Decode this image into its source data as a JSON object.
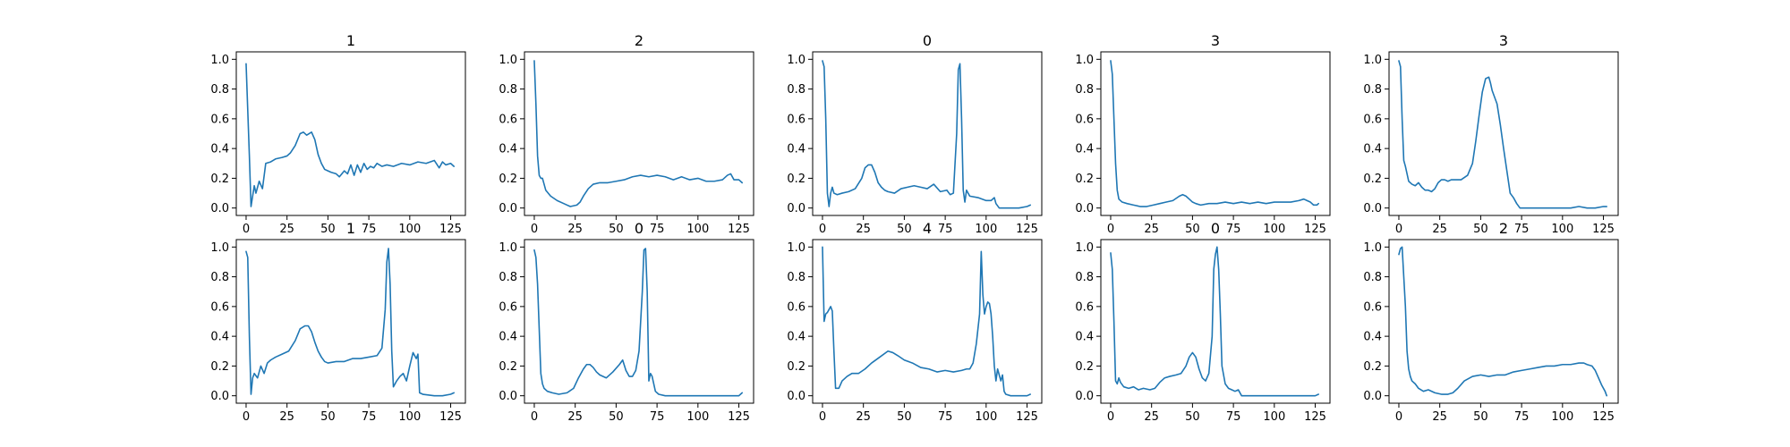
{
  "chart_data": [
    {
      "type": "line",
      "title": "1",
      "xlim": [
        -6,
        134
      ],
      "ylim": [
        -0.05,
        1.05
      ],
      "xticks": [
        0,
        25,
        50,
        75,
        100,
        125
      ],
      "yticks": [
        0.0,
        0.2,
        0.4,
        0.6,
        0.8,
        1.0
      ],
      "grid": false,
      "color": "#1f77b4",
      "x": [
        0,
        2,
        3,
        5,
        6,
        8,
        10,
        12,
        15,
        18,
        22,
        25,
        27,
        30,
        33,
        35,
        37,
        40,
        42,
        44,
        46,
        48,
        50,
        52,
        55,
        57,
        60,
        62,
        64,
        66,
        68,
        70,
        72,
        74,
        76,
        78,
        80,
        83,
        86,
        90,
        95,
        100,
        105,
        110,
        115,
        118,
        120,
        122,
        125,
        127
      ],
      "y": [
        0.97,
        0.35,
        0.01,
        0.15,
        0.1,
        0.18,
        0.13,
        0.3,
        0.31,
        0.33,
        0.34,
        0.35,
        0.37,
        0.42,
        0.5,
        0.51,
        0.49,
        0.51,
        0.46,
        0.36,
        0.3,
        0.26,
        0.25,
        0.24,
        0.23,
        0.21,
        0.25,
        0.23,
        0.29,
        0.22,
        0.29,
        0.24,
        0.3,
        0.26,
        0.28,
        0.27,
        0.3,
        0.28,
        0.29,
        0.28,
        0.3,
        0.29,
        0.31,
        0.3,
        0.32,
        0.27,
        0.31,
        0.29,
        0.3,
        0.28
      ]
    },
    {
      "type": "line",
      "title": "2",
      "xlim": [
        -6,
        134
      ],
      "ylim": [
        -0.05,
        1.05
      ],
      "xticks": [
        0,
        25,
        50,
        75,
        100,
        125
      ],
      "yticks": [
        0.0,
        0.2,
        0.4,
        0.6,
        0.8,
        1.0
      ],
      "grid": false,
      "color": "#1f77b4",
      "x": [
        0,
        1,
        2,
        3,
        4,
        5,
        7,
        10,
        14,
        18,
        22,
        26,
        28,
        30,
        33,
        36,
        40,
        45,
        50,
        55,
        60,
        65,
        70,
        75,
        80,
        85,
        90,
        95,
        100,
        105,
        110,
        115,
        118,
        120,
        122,
        125,
        127
      ],
      "y": [
        0.99,
        0.7,
        0.35,
        0.22,
        0.2,
        0.2,
        0.12,
        0.08,
        0.05,
        0.03,
        0.01,
        0.02,
        0.04,
        0.08,
        0.13,
        0.16,
        0.17,
        0.17,
        0.18,
        0.19,
        0.21,
        0.22,
        0.21,
        0.22,
        0.21,
        0.19,
        0.21,
        0.19,
        0.2,
        0.18,
        0.18,
        0.19,
        0.22,
        0.23,
        0.19,
        0.19,
        0.17
      ]
    },
    {
      "type": "line",
      "title": "0",
      "xlim": [
        -6,
        134
      ],
      "ylim": [
        -0.05,
        1.05
      ],
      "xticks": [
        0,
        25,
        50,
        75,
        100,
        125
      ],
      "yticks": [
        0.0,
        0.2,
        0.4,
        0.6,
        0.8,
        1.0
      ],
      "grid": false,
      "color": "#1f77b4",
      "x": [
        0,
        1,
        2,
        3,
        4,
        5,
        6,
        7,
        9,
        12,
        16,
        20,
        24,
        26,
        28,
        30,
        32,
        34,
        36,
        38,
        40,
        44,
        48,
        52,
        56,
        60,
        64,
        68,
        72,
        76,
        78,
        80,
        82,
        83,
        84,
        85,
        86,
        87,
        88,
        90,
        95,
        100,
        103,
        105,
        106,
        108,
        115,
        120,
        125,
        127
      ],
      "y": [
        0.99,
        0.95,
        0.6,
        0.1,
        0.01,
        0.1,
        0.14,
        0.1,
        0.09,
        0.1,
        0.11,
        0.13,
        0.2,
        0.27,
        0.29,
        0.29,
        0.24,
        0.17,
        0.14,
        0.12,
        0.11,
        0.1,
        0.13,
        0.14,
        0.15,
        0.14,
        0.13,
        0.16,
        0.11,
        0.12,
        0.09,
        0.1,
        0.5,
        0.93,
        0.97,
        0.6,
        0.12,
        0.04,
        0.12,
        0.08,
        0.07,
        0.05,
        0.05,
        0.07,
        0.03,
        0.0,
        0.0,
        0.0,
        0.01,
        0.02
      ]
    },
    {
      "type": "line",
      "title": "3",
      "xlim": [
        -6,
        134
      ],
      "ylim": [
        -0.05,
        1.05
      ],
      "xticks": [
        0,
        25,
        50,
        75,
        100,
        125
      ],
      "yticks": [
        0.0,
        0.2,
        0.4,
        0.6,
        0.8,
        1.0
      ],
      "grid": false,
      "color": "#1f77b4",
      "x": [
        0,
        1,
        2,
        3,
        4,
        5,
        7,
        10,
        14,
        18,
        22,
        26,
        30,
        34,
        38,
        42,
        44,
        46,
        48,
        50,
        52,
        55,
        60,
        65,
        70,
        75,
        80,
        85,
        90,
        95,
        100,
        105,
        110,
        115,
        118,
        120,
        122,
        124,
        126,
        127
      ],
      "y": [
        0.99,
        0.9,
        0.6,
        0.3,
        0.12,
        0.06,
        0.04,
        0.03,
        0.02,
        0.01,
        0.01,
        0.02,
        0.03,
        0.04,
        0.05,
        0.08,
        0.09,
        0.08,
        0.06,
        0.04,
        0.03,
        0.02,
        0.03,
        0.03,
        0.04,
        0.03,
        0.04,
        0.03,
        0.04,
        0.03,
        0.04,
        0.04,
        0.04,
        0.05,
        0.06,
        0.05,
        0.04,
        0.02,
        0.02,
        0.03
      ]
    },
    {
      "type": "line",
      "title": "3",
      "xlim": [
        -6,
        134
      ],
      "ylim": [
        -0.05,
        1.05
      ],
      "xticks": [
        0,
        25,
        50,
        75,
        100,
        125
      ],
      "yticks": [
        0.0,
        0.2,
        0.4,
        0.6,
        0.8,
        1.0
      ],
      "grid": false,
      "color": "#1f77b4",
      "x": [
        0,
        1,
        2,
        3,
        4,
        6,
        8,
        10,
        12,
        14,
        16,
        18,
        20,
        22,
        24,
        26,
        28,
        30,
        32,
        35,
        38,
        42,
        45,
        47,
        49,
        51,
        53,
        55,
        56,
        57,
        58,
        60,
        62,
        64,
        66,
        68,
        70,
        72,
        74,
        76,
        80,
        90,
        100,
        105,
        110,
        115,
        120,
        125,
        127
      ],
      "y": [
        0.99,
        0.95,
        0.6,
        0.32,
        0.28,
        0.18,
        0.16,
        0.15,
        0.17,
        0.14,
        0.12,
        0.12,
        0.11,
        0.13,
        0.17,
        0.19,
        0.19,
        0.18,
        0.19,
        0.19,
        0.19,
        0.22,
        0.3,
        0.45,
        0.62,
        0.78,
        0.87,
        0.88,
        0.84,
        0.79,
        0.76,
        0.7,
        0.56,
        0.4,
        0.25,
        0.1,
        0.07,
        0.03,
        0.0,
        0.0,
        0.0,
        0.0,
        0.0,
        0.0,
        0.01,
        0.0,
        0.0,
        0.01,
        0.01
      ]
    },
    {
      "type": "line",
      "title": "1",
      "xlim": [
        -6,
        134
      ],
      "ylim": [
        -0.05,
        1.05
      ],
      "xticks": [
        0,
        25,
        50,
        75,
        100,
        125
      ],
      "yticks": [
        0.0,
        0.2,
        0.4,
        0.6,
        0.8,
        1.0
      ],
      "grid": false,
      "color": "#1f77b4",
      "x": [
        0,
        1,
        2,
        3,
        4,
        5,
        7,
        9,
        11,
        13,
        15,
        18,
        22,
        26,
        30,
        33,
        36,
        38,
        40,
        42,
        44,
        46,
        48,
        50,
        55,
        60,
        65,
        70,
        75,
        80,
        83,
        85,
        86,
        87,
        88,
        89,
        90,
        92,
        94,
        96,
        98,
        100,
        102,
        104,
        105,
        106,
        108,
        115,
        120,
        125,
        127
      ],
      "y": [
        0.97,
        0.93,
        0.4,
        0.01,
        0.12,
        0.15,
        0.12,
        0.2,
        0.15,
        0.22,
        0.24,
        0.26,
        0.28,
        0.3,
        0.37,
        0.45,
        0.47,
        0.47,
        0.43,
        0.36,
        0.3,
        0.26,
        0.23,
        0.22,
        0.23,
        0.23,
        0.25,
        0.25,
        0.26,
        0.27,
        0.32,
        0.58,
        0.9,
        0.99,
        0.75,
        0.3,
        0.06,
        0.1,
        0.13,
        0.15,
        0.1,
        0.2,
        0.29,
        0.25,
        0.28,
        0.02,
        0.01,
        0.0,
        0.0,
        0.01,
        0.02
      ]
    },
    {
      "type": "line",
      "title": "0",
      "xlim": [
        -6,
        134
      ],
      "ylim": [
        -0.05,
        1.05
      ],
      "xticks": [
        0,
        25,
        50,
        75,
        100,
        125
      ],
      "yticks": [
        0.0,
        0.2,
        0.4,
        0.6,
        0.8,
        1.0
      ],
      "grid": false,
      "color": "#1f77b4",
      "x": [
        0,
        1,
        2,
        3,
        4,
        5,
        6,
        8,
        11,
        15,
        20,
        24,
        27,
        30,
        32,
        34,
        36,
        38,
        40,
        44,
        48,
        52,
        54,
        56,
        58,
        60,
        62,
        64,
        66,
        67,
        68,
        69,
        70,
        71,
        72,
        74,
        76,
        80,
        85,
        90,
        100,
        110,
        120,
        125,
        127
      ],
      "y": [
        0.98,
        0.93,
        0.75,
        0.45,
        0.15,
        0.08,
        0.05,
        0.03,
        0.02,
        0.01,
        0.02,
        0.05,
        0.12,
        0.18,
        0.21,
        0.21,
        0.19,
        0.16,
        0.14,
        0.12,
        0.16,
        0.21,
        0.24,
        0.17,
        0.13,
        0.13,
        0.17,
        0.3,
        0.7,
        0.98,
        0.99,
        0.7,
        0.1,
        0.15,
        0.13,
        0.03,
        0.01,
        0.0,
        0.0,
        0.0,
        0.0,
        0.0,
        0.0,
        0.0,
        0.02
      ]
    },
    {
      "type": "line",
      "title": "4",
      "xlim": [
        -6,
        134
      ],
      "ylim": [
        -0.05,
        1.05
      ],
      "xticks": [
        0,
        25,
        50,
        75,
        100,
        125
      ],
      "yticks": [
        0.0,
        0.2,
        0.4,
        0.6,
        0.8,
        1.0
      ],
      "grid": false,
      "color": "#1f77b4",
      "x": [
        0,
        1,
        2,
        3,
        4,
        5,
        6,
        7,
        8,
        10,
        12,
        15,
        18,
        22,
        26,
        30,
        35,
        40,
        43,
        46,
        50,
        55,
        60,
        65,
        70,
        75,
        80,
        85,
        88,
        90,
        92,
        94,
        96,
        97,
        98,
        99,
        100,
        101,
        102,
        103,
        104,
        105,
        106,
        107,
        108,
        109,
        110,
        111,
        112,
        115,
        120,
        125,
        127
      ],
      "y": [
        1.0,
        0.5,
        0.55,
        0.56,
        0.58,
        0.6,
        0.57,
        0.3,
        0.05,
        0.05,
        0.1,
        0.13,
        0.15,
        0.15,
        0.18,
        0.22,
        0.26,
        0.3,
        0.29,
        0.27,
        0.24,
        0.22,
        0.19,
        0.18,
        0.16,
        0.17,
        0.16,
        0.17,
        0.18,
        0.18,
        0.22,
        0.35,
        0.55,
        0.97,
        0.68,
        0.55,
        0.6,
        0.63,
        0.62,
        0.55,
        0.4,
        0.2,
        0.1,
        0.18,
        0.14,
        0.1,
        0.14,
        0.03,
        0.01,
        0.0,
        0.0,
        0.0,
        0.01
      ]
    },
    {
      "type": "line",
      "title": "0",
      "xlim": [
        -6,
        134
      ],
      "ylim": [
        -0.05,
        1.05
      ],
      "xticks": [
        0,
        25,
        50,
        75,
        100,
        125
      ],
      "yticks": [
        0.0,
        0.2,
        0.4,
        0.6,
        0.8,
        1.0
      ],
      "grid": false,
      "color": "#1f77b4",
      "x": [
        0,
        1,
        2,
        3,
        4,
        5,
        6,
        8,
        11,
        14,
        17,
        20,
        24,
        27,
        30,
        33,
        36,
        40,
        43,
        46,
        48,
        50,
        52,
        54,
        56,
        58,
        60,
        62,
        63,
        64,
        65,
        66,
        67,
        68,
        70,
        72,
        74,
        76,
        78,
        80,
        85,
        90,
        100,
        110,
        120,
        125,
        127
      ],
      "y": [
        0.96,
        0.85,
        0.5,
        0.1,
        0.08,
        0.12,
        0.09,
        0.06,
        0.05,
        0.06,
        0.04,
        0.05,
        0.04,
        0.05,
        0.09,
        0.12,
        0.13,
        0.14,
        0.15,
        0.2,
        0.26,
        0.29,
        0.26,
        0.18,
        0.12,
        0.1,
        0.15,
        0.4,
        0.85,
        0.95,
        1.0,
        0.85,
        0.55,
        0.2,
        0.08,
        0.05,
        0.04,
        0.03,
        0.04,
        0.0,
        0.0,
        0.0,
        0.0,
        0.0,
        0.0,
        0.0,
        0.01
      ]
    },
    {
      "type": "line",
      "title": "2",
      "xlim": [
        -6,
        134
      ],
      "ylim": [
        -0.05,
        1.05
      ],
      "xticks": [
        0,
        25,
        50,
        75,
        100,
        125
      ],
      "yticks": [
        0.0,
        0.2,
        0.4,
        0.6,
        0.8,
        1.0
      ],
      "grid": false,
      "color": "#1f77b4",
      "x": [
        0,
        1,
        2,
        3,
        4,
        5,
        6,
        7,
        8,
        10,
        12,
        15,
        18,
        22,
        26,
        30,
        33,
        36,
        40,
        45,
        50,
        55,
        60,
        65,
        70,
        75,
        80,
        85,
        90,
        95,
        100,
        105,
        110,
        113,
        115,
        118,
        120,
        122,
        124,
        126,
        127
      ],
      "y": [
        0.95,
        0.99,
        1.0,
        0.8,
        0.6,
        0.3,
        0.18,
        0.13,
        0.1,
        0.08,
        0.05,
        0.03,
        0.04,
        0.02,
        0.01,
        0.01,
        0.02,
        0.05,
        0.1,
        0.13,
        0.14,
        0.13,
        0.14,
        0.14,
        0.16,
        0.17,
        0.18,
        0.19,
        0.2,
        0.2,
        0.21,
        0.21,
        0.22,
        0.22,
        0.21,
        0.2,
        0.17,
        0.12,
        0.07,
        0.03,
        0.0
      ]
    }
  ]
}
